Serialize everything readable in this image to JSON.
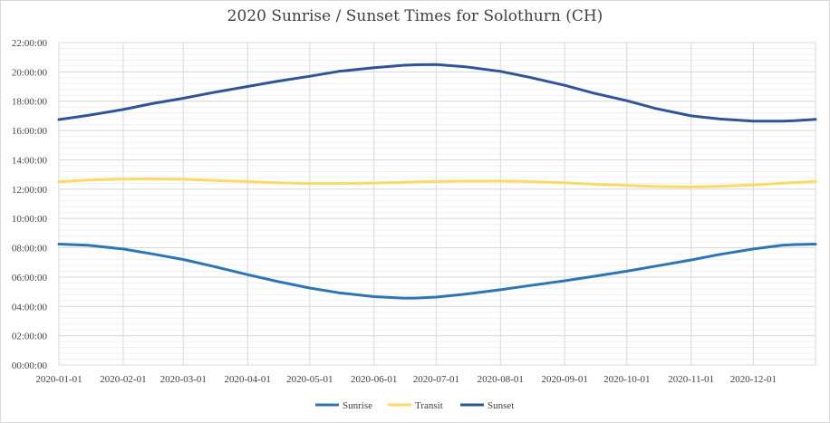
{
  "chart_data": {
    "type": "line",
    "title": "2020 Sunrise / Sunset Times for Solothurn (CH)",
    "xlabel": "",
    "ylabel": "",
    "x_ticks": [
      "2020-01-01",
      "2020-02-01",
      "2020-03-01",
      "2020-04-01",
      "2020-05-01",
      "2020-06-01",
      "2020-07-01",
      "2020-08-01",
      "2020-09-01",
      "2020-10-01",
      "2020-11-01",
      "2020-12-01"
    ],
    "xlim": [
      "2020-01-01",
      "2020-12-31"
    ],
    "y_ticks": [
      "00:00:00",
      "02:00:00",
      "04:00:00",
      "06:00:00",
      "08:00:00",
      "10:00:00",
      "12:00:00",
      "14:00:00",
      "16:00:00",
      "18:00:00",
      "20:00:00",
      "22:00:00"
    ],
    "ylim": [
      "00:00:00",
      "22:00:00"
    ],
    "grid": true,
    "legend_position": "bottom",
    "x": [
      "2020-01-01",
      "2020-01-15",
      "2020-02-01",
      "2020-02-15",
      "2020-03-01",
      "2020-03-15",
      "2020-04-01",
      "2020-04-15",
      "2020-05-01",
      "2020-05-15",
      "2020-06-01",
      "2020-06-15",
      "2020-06-21",
      "2020-07-01",
      "2020-07-15",
      "2020-08-01",
      "2020-08-15",
      "2020-09-01",
      "2020-09-15",
      "2020-10-01",
      "2020-10-15",
      "2020-11-01",
      "2020-11-15",
      "2020-12-01",
      "2020-12-15",
      "2020-12-21",
      "2020-12-31"
    ],
    "series": [
      {
        "name": "Sunrise",
        "color": "#2e75b6",
        "values": [
          "08:15",
          "08:10",
          "07:55",
          "07:35",
          "07:12",
          "06:45",
          "06:10",
          "05:43",
          "05:15",
          "04:56",
          "04:40",
          "04:34",
          "04:34",
          "04:38",
          "04:50",
          "05:08",
          "05:25",
          "05:45",
          "06:03",
          "06:24",
          "06:45",
          "07:10",
          "07:33",
          "07:55",
          "08:10",
          "08:13",
          "08:15"
        ]
      },
      {
        "name": "Transit",
        "color": "#ffd966",
        "values": [
          "12:30",
          "12:37",
          "12:41",
          "12:42",
          "12:40",
          "12:36",
          "12:31",
          "12:26",
          "12:23",
          "12:23",
          "12:25",
          "12:28",
          "12:30",
          "12:31",
          "12:33",
          "12:33",
          "12:31",
          "12:26",
          "12:20",
          "12:15",
          "12:11",
          "12:09",
          "12:12",
          "12:17",
          "12:24",
          "12:27",
          "12:31"
        ]
      },
      {
        "name": "Sunset",
        "color": "#2f5597",
        "values": [
          "16:45",
          "17:02",
          "17:26",
          "17:50",
          "18:12",
          "18:35",
          "19:00",
          "19:21",
          "19:42",
          "20:02",
          "20:17",
          "20:27",
          "20:29",
          "20:30",
          "20:21",
          "20:02",
          "19:38",
          "19:05",
          "18:33",
          "18:02",
          "17:30",
          "17:00",
          "16:47",
          "16:38",
          "16:38",
          "16:40",
          "16:46"
        ]
      }
    ]
  }
}
